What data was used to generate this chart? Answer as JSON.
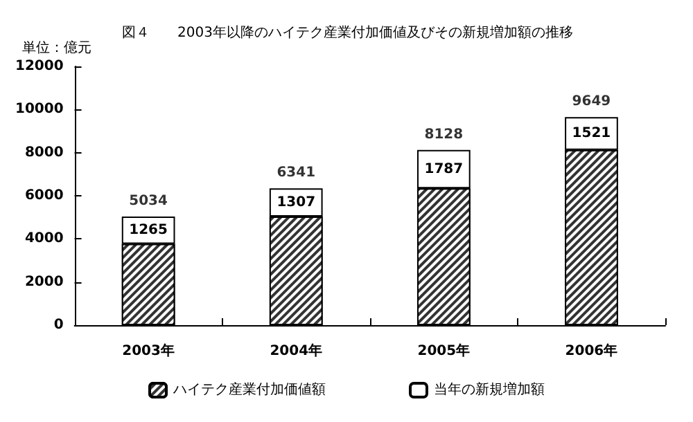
{
  "chart_data": {
    "type": "bar",
    "title": "図４　　2003年以降のハイテク産業付加価値及びその新規増加額の推移",
    "ylabel": "単位：億元",
    "categories": [
      "2003年",
      "2004年",
      "2005年",
      "2006年"
    ],
    "stacked": true,
    "series": [
      {
        "name": "ハイテク産業付加価値額",
        "color": "#333333",
        "values": [
          3769,
          5034,
          6341,
          8128
        ]
      },
      {
        "name": "当年の新規増加額",
        "color": "#ffffff",
        "values": [
          1265,
          1307,
          1787,
          1521
        ],
        "value_labels": [
          "1265",
          "1307",
          "1787",
          "1521"
        ]
      }
    ],
    "totals": [
      "5034",
      "6341",
      "8128",
      "9649"
    ],
    "ylim": [
      0,
      12000
    ],
    "yticks": [
      0,
      2000,
      4000,
      6000,
      8000,
      10000,
      12000
    ],
    "grid": false,
    "legend": "bottom"
  }
}
